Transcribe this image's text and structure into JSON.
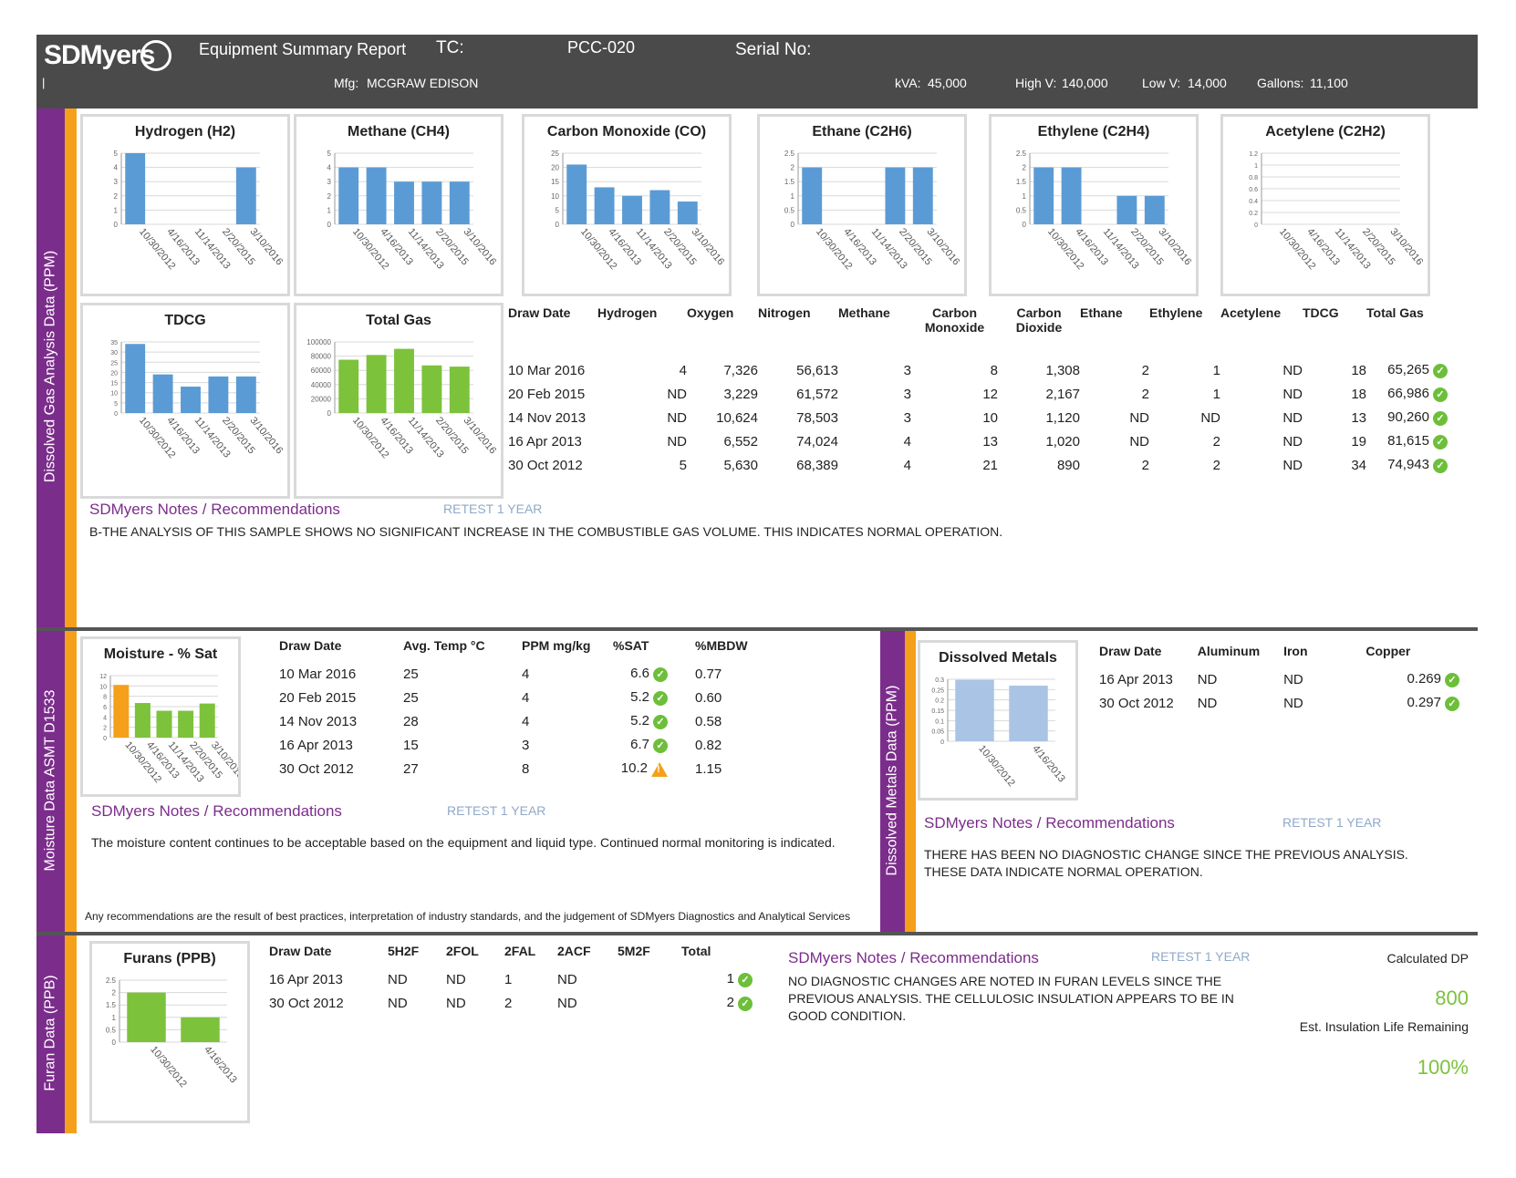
{
  "header": {
    "logo": "SDMyers",
    "report_title": "Equipment Summary Report",
    "tc_label": "TC:",
    "tc_value": "PCC-020",
    "serial_label": "Serial No:",
    "pipe": "|",
    "mfg_label": "Mfg:",
    "mfg_value": "MCGRAW EDISON",
    "kva_label": "kVA:",
    "kva_value": "45,000",
    "highv_label": "High V:",
    "highv_value": "140,000",
    "lowv_label": "Low V:",
    "lowv_value": "14,000",
    "gallons_label": "Gallons:",
    "gallons_value": "11,100"
  },
  "side_labels": {
    "dga": "Dissolved Gas Analysis Data (PPM)",
    "moisture": "Moisture Data   ASMT D1533",
    "metals": "Dissolved Metals Data (PPM)",
    "furan": "Furan Data (PPB)"
  },
  "chart_data": [
    {
      "type": "bar",
      "title": "Hydrogen (H2)",
      "categories": [
        "10/30/2012",
        "4/16/2013",
        "11/14/2013",
        "2/20/2015",
        "3/10/2016"
      ],
      "values": [
        5,
        0,
        0,
        0,
        4
      ],
      "ylim": [
        0,
        5
      ],
      "ticks": [
        "0",
        "1",
        "2",
        "3",
        "4",
        "5"
      ],
      "color": "#5b9bd5"
    },
    {
      "type": "bar",
      "title": "Methane (CH4)",
      "categories": [
        "10/30/2012",
        "4/16/2013",
        "11/14/2013",
        "2/20/2015",
        "3/10/2016"
      ],
      "values": [
        4,
        4,
        3,
        3,
        3
      ],
      "ylim": [
        0,
        5
      ],
      "ticks": [
        "0",
        "1",
        "2",
        "3",
        "4",
        "5"
      ],
      "color": "#5b9bd5"
    },
    {
      "type": "bar",
      "title": "Carbon Monoxide (CO)",
      "categories": [
        "10/30/2012",
        "4/16/2013",
        "11/14/2013",
        "2/20/2015",
        "3/10/2016"
      ],
      "values": [
        21,
        13,
        10,
        12,
        8
      ],
      "ylim": [
        0,
        25
      ],
      "ticks": [
        "0",
        "5",
        "10",
        "15",
        "20",
        "25"
      ],
      "color": "#5b9bd5"
    },
    {
      "type": "bar",
      "title": "Ethane  (C2H6)",
      "categories": [
        "10/30/2012",
        "4/16/2013",
        "11/14/2013",
        "2/20/2015",
        "3/10/2016"
      ],
      "values": [
        2,
        0,
        0,
        2,
        2
      ],
      "ylim": [
        0,
        2.5
      ],
      "ticks": [
        "0",
        "0.5",
        "1",
        "1.5",
        "2",
        "2.5"
      ],
      "color": "#5b9bd5"
    },
    {
      "type": "bar",
      "title": "Ethylene (C2H4)",
      "categories": [
        "10/30/2012",
        "4/16/2013",
        "11/14/2013",
        "2/20/2015",
        "3/10/2016"
      ],
      "values": [
        2,
        2,
        0,
        1,
        1
      ],
      "ylim": [
        0,
        2.5
      ],
      "ticks": [
        "0",
        "0.5",
        "1",
        "1.5",
        "2",
        "2.5"
      ],
      "color": "#5b9bd5"
    },
    {
      "type": "bar",
      "title": "Acetylene (C2H2)",
      "categories": [
        "10/30/2012",
        "4/16/2013",
        "11/14/2013",
        "2/20/2015",
        "3/10/2016"
      ],
      "values": [
        0,
        0,
        0,
        0,
        0
      ],
      "ylim": [
        0,
        1.2
      ],
      "ticks": [
        "0",
        "0.2",
        "0.4",
        "0.6",
        "0.8",
        "1",
        "1.2"
      ],
      "color": "#5b9bd5"
    },
    {
      "type": "bar",
      "title": "TDCG",
      "categories": [
        "10/30/2012",
        "4/16/2013",
        "11/14/2013",
        "2/20/2015",
        "3/10/2016"
      ],
      "values": [
        34,
        19,
        13,
        18,
        18
      ],
      "ylim": [
        0,
        35
      ],
      "ticks": [
        "0",
        "5",
        "10",
        "15",
        "20",
        "25",
        "30",
        "35"
      ],
      "color": "#5b9bd5"
    },
    {
      "type": "bar",
      "title": "Total Gas",
      "categories": [
        "10/30/2012",
        "4/16/2013",
        "11/14/2013",
        "2/20/2015",
        "3/10/2016"
      ],
      "values": [
        74943,
        81615,
        90260,
        66986,
        65265
      ],
      "ylim": [
        0,
        100000
      ],
      "ticks": [
        "0",
        "20000",
        "40000",
        "60000",
        "80000",
        "100000"
      ],
      "color": "#7cc23b"
    },
    {
      "type": "bar",
      "title": "Moisture - % Sat",
      "categories": [
        "10/30/2012",
        "4/16/2013",
        "11/14/2013",
        "2/20/2015",
        "3/10/2016"
      ],
      "values": [
        10.2,
        6.7,
        5.2,
        5.2,
        6.6
      ],
      "ylim": [
        0,
        12
      ],
      "ticks": [
        "0",
        "2",
        "4",
        "6",
        "8",
        "10",
        "12"
      ],
      "color": "#7cc23b",
      "highlight": 0,
      "highlight_color": "#f5a01a"
    },
    {
      "type": "bar",
      "title": "Dissolved Metals",
      "categories": [
        "10/30/2012",
        "4/16/2013"
      ],
      "values": [
        0.297,
        0.269
      ],
      "ylim": [
        0,
        0.3
      ],
      "ticks": [
        "0",
        "0.05",
        "0.1",
        "0.15",
        "0.2",
        "0.25",
        "0.3"
      ],
      "color": "#a9c4e4"
    },
    {
      "type": "bar",
      "title": "Furans (PPB)",
      "categories": [
        "10/30/2012",
        "4/16/2013"
      ],
      "values": [
        2,
        1
      ],
      "ylim": [
        0,
        2.5
      ],
      "ticks": [
        "0",
        "0.5",
        "1",
        "1.5",
        "2",
        "2.5"
      ],
      "color": "#7cc23b"
    }
  ],
  "dga_table": {
    "headers": [
      "Draw Date",
      "Hydrogen",
      "Oxygen",
      "Nitrogen",
      "Methane",
      "Carbon Monoxide",
      "Carbon Dioxide",
      "Ethane",
      "Ethylene",
      "Acetylene",
      "TDCG",
      "Total Gas"
    ],
    "rows": [
      [
        "10 Mar 2016",
        "4",
        "7,326",
        "56,613",
        "3",
        "8",
        "1,308",
        "2",
        "1",
        "ND",
        "18",
        "65,265"
      ],
      [
        "20 Feb 2015",
        "ND",
        "3,229",
        "61,572",
        "3",
        "12",
        "2,167",
        "2",
        "1",
        "ND",
        "18",
        "66,986"
      ],
      [
        "14 Nov 2013",
        "ND",
        "10,624",
        "78,503",
        "3",
        "10",
        "1,120",
        "ND",
        "ND",
        "ND",
        "13",
        "90,260"
      ],
      [
        "16 Apr 2013",
        "ND",
        "6,552",
        "74,024",
        "4",
        "13",
        "1,020",
        "ND",
        "2",
        "ND",
        "19",
        "81,615"
      ],
      [
        "30 Oct 2012",
        "5",
        "5,630",
        "68,389",
        "4",
        "21",
        "890",
        "2",
        "2",
        "ND",
        "34",
        "74,943"
      ]
    ]
  },
  "dga_notes": {
    "heading": "SDMyers Notes / Recommendations",
    "retest": "RETEST 1 YEAR",
    "text": "B-THE ANALYSIS OF THIS SAMPLE SHOWS NO SIGNIFICANT INCREASE IN THE COMBUSTIBLE GAS VOLUME. THIS INDICATES NORMAL OPERATION."
  },
  "moisture_table": {
    "headers": [
      "Draw Date",
      "Avg. Temp °C",
      "PPM mg/kg",
      "%SAT",
      "%MBDW"
    ],
    "rows": [
      [
        "10 Mar 2016",
        "25",
        "4",
        "6.6",
        "0.77"
      ],
      [
        "20 Feb 2015",
        "25",
        "4",
        "5.2",
        "0.60"
      ],
      [
        "14 Nov 2013",
        "28",
        "4",
        "5.2",
        "0.58"
      ],
      [
        "16 Apr 2013",
        "15",
        "3",
        "6.7",
        "0.82"
      ],
      [
        "30 Oct 2012",
        "27",
        "8",
        "10.2",
        "1.15"
      ]
    ],
    "status": [
      "ok",
      "ok",
      "ok",
      "ok",
      "warn"
    ]
  },
  "moisture_notes": {
    "heading": "SDMyers Notes / Recommendations",
    "retest": "RETEST 1 YEAR",
    "text": "The moisture content continues to be acceptable based on the equipment and liquid type. Continued normal monitoring is indicated.",
    "disclaimer": "Any recommendations are the result of best practices, interpretation of industry standards, and the judgement of SDMyers Diagnostics and Analytical Services"
  },
  "metals_table": {
    "headers": [
      "Draw Date",
      "Aluminum",
      "Iron",
      "Copper"
    ],
    "rows": [
      [
        "16 Apr 2013",
        "ND",
        "ND",
        "0.269"
      ],
      [
        "30 Oct 2012",
        "ND",
        "ND",
        "0.297"
      ]
    ]
  },
  "metals_notes": {
    "heading": "SDMyers Notes / Recommendations",
    "retest": "RETEST 1 YEAR",
    "text": "THERE HAS BEEN NO DIAGNOSTIC CHANGE SINCE THE PREVIOUS ANALYSIS. THESE DATA INDICATE NORMAL OPERATION."
  },
  "furan_table": {
    "headers": [
      "Draw Date",
      "5H2F",
      "2FOL",
      "2FAL",
      "2ACF",
      "5M2F",
      "Total"
    ],
    "rows": [
      [
        "16 Apr 2013",
        "ND",
        "ND",
        "1",
        "ND",
        "",
        "1"
      ],
      [
        "30 Oct 2012",
        "ND",
        "ND",
        "2",
        "ND",
        "",
        "2"
      ]
    ]
  },
  "furan_notes": {
    "heading": "SDMyers Notes / Recommendations",
    "retest": "RETEST 1 YEAR",
    "text": "NO DIAGNOSTIC CHANGES ARE NOTED IN FURAN LEVELS SINCE THE PREVIOUS ANALYSIS. THE CELLULOSIC INSULATION APPEARS TO BE IN GOOD CONDITION."
  },
  "insulation": {
    "dp_label": "Calculated DP",
    "dp_value": "800",
    "life_label": "Est. Insulation Life Remaining",
    "life_value": "100%",
    "value_color": "#7cc23b"
  },
  "colors": {
    "purple": "#7b2d8b",
    "orange": "#f5a01a",
    "header": "#4a4a4a",
    "ok": "#6dbf3a"
  }
}
